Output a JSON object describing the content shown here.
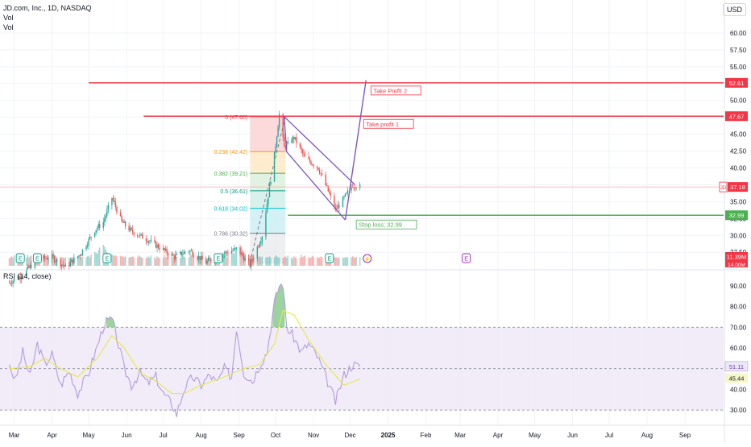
{
  "header": {
    "symbol": "JD.com, Inc., 1D, NASDAQ",
    "vol_label_1": "Vol",
    "vol_label_2": "Vol",
    "currency": "USD"
  },
  "colors": {
    "up": "#26a69a",
    "down": "#ef5350",
    "resistance": "#f23645",
    "support": "#4caf50",
    "channel": "#7e57c2",
    "rsi": "#b39ddb",
    "rsi_ma": "#e6e84a",
    "rsi_band": "#ede7f6",
    "price_badge": "#f23645",
    "grid": "#f0f3fa"
  },
  "chart_data": [
    {
      "type": "candlestick",
      "title": "JD.com, Inc., 1D, NASDAQ",
      "x_ticks": [
        "Mar",
        "Apr",
        "May",
        "Jun",
        "Jul",
        "Aug",
        "Sep",
        "Oct",
        "Nov",
        "Dec",
        "2025",
        "Feb",
        "Mar",
        "Apr",
        "May",
        "Jun",
        "Jul",
        "Aug",
        "Sep"
      ],
      "y_ticks": [
        27.5,
        30.0,
        32.5,
        35.0,
        37.5,
        40.0,
        42.5,
        45.0,
        47.5,
        50.0,
        52.5,
        55.0,
        57.5,
        60.0
      ],
      "y_tick_labels": [
        "27.50",
        "30.00",
        "32.50",
        "35.00",
        "37.50",
        "40.00",
        "42.50",
        "45.00",
        "47.50",
        "50.00",
        "52.50",
        "55.00",
        "57.50",
        "60.00"
      ],
      "ylim": [
        25.5,
        62.5
      ],
      "price_points": [
        [
          "2024-02-26",
          23.0
        ],
        [
          "2024-03-08",
          24.2
        ],
        [
          "2024-03-20",
          26.5
        ],
        [
          "2024-04-01",
          26.8
        ],
        [
          "2024-04-12",
          25.3
        ],
        [
          "2024-04-24",
          27.2
        ],
        [
          "2024-05-06",
          30.8
        ],
        [
          "2024-05-13",
          32.0
        ],
        [
          "2024-05-20",
          35.6
        ],
        [
          "2024-05-28",
          32.0
        ],
        [
          "2024-06-05",
          30.6
        ],
        [
          "2024-06-17",
          29.5
        ],
        [
          "2024-06-28",
          28.2
        ],
        [
          "2024-07-10",
          26.8
        ],
        [
          "2024-07-22",
          27.8
        ],
        [
          "2024-08-05",
          26.0
        ],
        [
          "2024-08-19",
          27.3
        ],
        [
          "2024-08-30",
          28.0
        ],
        [
          "2024-09-10",
          25.6
        ],
        [
          "2024-09-20",
          30.0
        ],
        [
          "2024-09-30",
          42.0
        ],
        [
          "2024-10-04",
          47.9
        ],
        [
          "2024-10-08",
          43.0
        ],
        [
          "2024-10-16",
          44.5
        ],
        [
          "2024-10-25",
          41.5
        ],
        [
          "2024-11-05",
          40.0
        ],
        [
          "2024-11-12",
          37.0
        ],
        [
          "2024-11-19",
          33.8
        ],
        [
          "2024-11-26",
          35.5
        ],
        [
          "2024-12-03",
          37.5
        ],
        [
          "2024-12-09",
          37.18
        ]
      ],
      "volume_profile": [
        0.25,
        0.3,
        0.35,
        0.28,
        0.4,
        0.3,
        0.22,
        0.35,
        0.3,
        0.25,
        0.28,
        0.45,
        0.3,
        0.35,
        0.4,
        0.3,
        0.25,
        0.3,
        0.38,
        0.32,
        0.28,
        0.3,
        0.26,
        0.35,
        0.3,
        0.28,
        0.5,
        0.42,
        0.35,
        0.3,
        0.33,
        0.28,
        0.3,
        0.25,
        0.3,
        0.28,
        0.26,
        0.3,
        0.32,
        0.28,
        0.3,
        0.35,
        0.3,
        0.28,
        0.32,
        0.3,
        0.35,
        0.38,
        0.3,
        0.45,
        0.6,
        0.55,
        0.5,
        0.7,
        0.85,
        1.0,
        0.9,
        0.75,
        0.6,
        0.5,
        0.45,
        0.4,
        0.38,
        0.42,
        0.35,
        0.38,
        0.32,
        0.36,
        0.3,
        0.34,
        0.28,
        0.32,
        0.3,
        0.35,
        0.28,
        0.3,
        0.4,
        0.35,
        0.3,
        0.28
      ],
      "last_price_label": "37.18",
      "last_price_tag": "JD",
      "volume_last_label": "11.39M",
      "volume_prev_label": "14.00M",
      "fib_retracement": {
        "start": "2024-09-10",
        "end": "2024-10-09",
        "levels": [
          {
            "label": "0 (47.60)",
            "price": 47.6
          },
          {
            "label": "0.236 (42.42)",
            "price": 42.42
          },
          {
            "label": "0.382 (39.21)",
            "price": 39.21
          },
          {
            "label": "0.5 (36.61)",
            "price": 36.61
          },
          {
            "label": "0.618 (34.02)",
            "price": 34.02
          },
          {
            "label": "0.786 (30.32)",
            "price": 30.32
          }
        ]
      },
      "levels": [
        {
          "name": "Take Profit 2",
          "price": 52.61,
          "label": "Take Profit 2",
          "axis_label": "52.61",
          "from": "2024-05-01"
        },
        {
          "name": "Take profit 1",
          "price": 47.67,
          "label": "Take profit 1",
          "axis_label": "47.67",
          "from": "2024-06-15"
        },
        {
          "name": "Stop loss",
          "price": 32.99,
          "label": "Stop loss; 32.99",
          "axis_label": "32.99",
          "from": "2024-10-11"
        }
      ],
      "channel": {
        "upper": [
          [
            "2024-10-08",
            47.6
          ],
          [
            "2024-12-05",
            37.5
          ]
        ],
        "lower": [
          [
            "2024-10-10",
            42.4
          ],
          [
            "2024-11-27",
            32.3
          ]
        ],
        "breakout": [
          [
            "2024-11-27",
            32.3
          ],
          [
            "2024-12-14",
            53.0
          ]
        ]
      },
      "event_markers": [
        "2024-03-06",
        "2024-03-20",
        "2024-05-16",
        "2024-08-15",
        "2024-11-14",
        "2024-12-15",
        "2025-03-06"
      ]
    },
    {
      "type": "line",
      "title": "RSI (14, close)",
      "y_ticks": [
        30,
        40,
        50,
        60,
        70,
        80,
        90
      ],
      "y_tick_labels": [
        "30.00",
        "40.00",
        "50.00",
        "60.00",
        "70.00",
        "80.00",
        "90.00"
      ],
      "ylim": [
        25,
        95
      ],
      "overbought": 70,
      "oversold": 30,
      "middle": 50,
      "series": [
        {
          "key": "rsi",
          "values": [
            [
              "2024-02-26",
              52
            ],
            [
              "2024-03-02",
              44
            ],
            [
              "2024-03-08",
              58
            ],
            [
              "2024-03-14",
              46
            ],
            [
              "2024-03-20",
              62
            ],
            [
              "2024-03-26",
              52
            ],
            [
              "2024-04-01",
              57
            ],
            [
              "2024-04-08",
              42
            ],
            [
              "2024-04-15",
              49
            ],
            [
              "2024-04-22",
              38
            ],
            [
              "2024-05-01",
              48
            ],
            [
              "2024-05-08",
              61
            ],
            [
              "2024-05-14",
              72
            ],
            [
              "2024-05-20",
              74
            ],
            [
              "2024-05-24",
              65
            ],
            [
              "2024-05-30",
              50
            ],
            [
              "2024-06-05",
              42
            ],
            [
              "2024-06-12",
              48
            ],
            [
              "2024-06-18",
              43
            ],
            [
              "2024-06-25",
              46
            ],
            [
              "2024-07-01",
              38
            ],
            [
              "2024-07-08",
              33
            ],
            [
              "2024-07-12",
              28
            ],
            [
              "2024-07-18",
              40
            ],
            [
              "2024-07-25",
              46
            ],
            [
              "2024-08-01",
              42
            ],
            [
              "2024-08-08",
              47
            ],
            [
              "2024-08-14",
              43
            ],
            [
              "2024-08-20",
              50
            ],
            [
              "2024-08-26",
              46
            ],
            [
              "2024-08-30",
              70
            ],
            [
              "2024-09-05",
              48
            ],
            [
              "2024-09-12",
              44
            ],
            [
              "2024-09-18",
              52
            ],
            [
              "2024-09-24",
              58
            ],
            [
              "2024-09-30",
              82
            ],
            [
              "2024-10-04",
              90
            ],
            [
              "2024-10-07",
              91
            ],
            [
              "2024-10-10",
              70
            ],
            [
              "2024-10-16",
              65
            ],
            [
              "2024-10-22",
              58
            ],
            [
              "2024-10-28",
              62
            ],
            [
              "2024-11-04",
              56
            ],
            [
              "2024-11-11",
              46
            ],
            [
              "2024-11-19",
              34
            ],
            [
              "2024-11-26",
              47
            ],
            [
              "2024-12-03",
              52
            ],
            [
              "2024-12-09",
              51
            ]
          ]
        },
        {
          "key": "rsi_ma",
          "values": [
            [
              "2024-02-26",
              50
            ],
            [
              "2024-03-14",
              51
            ],
            [
              "2024-03-26",
              55
            ],
            [
              "2024-04-08",
              50
            ],
            [
              "2024-04-22",
              46
            ],
            [
              "2024-05-08",
              55
            ],
            [
              "2024-05-20",
              66
            ],
            [
              "2024-05-30",
              60
            ],
            [
              "2024-06-12",
              48
            ],
            [
              "2024-06-25",
              44
            ],
            [
              "2024-07-08",
              38
            ],
            [
              "2024-07-18",
              38
            ],
            [
              "2024-08-01",
              42
            ],
            [
              "2024-08-20",
              46
            ],
            [
              "2024-09-05",
              50
            ],
            [
              "2024-09-18",
              52
            ],
            [
              "2024-09-30",
              62
            ],
            [
              "2024-10-07",
              78
            ],
            [
              "2024-10-16",
              76
            ],
            [
              "2024-10-28",
              64
            ],
            [
              "2024-11-11",
              52
            ],
            [
              "2024-11-26",
              42
            ],
            [
              "2024-12-09",
              45
            ]
          ]
        }
      ],
      "last_rsi_label": "51.11",
      "last_ma_label": "45.44"
    }
  ]
}
